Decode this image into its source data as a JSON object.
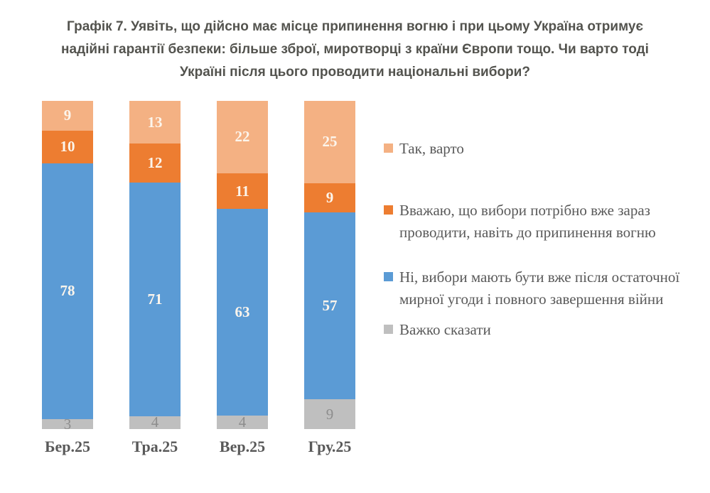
{
  "title": {
    "lines": [
      "Графік 7. Уявіть, що дійсно має місце припинення вогню і при цьому Україна отримує",
      "надійні гарантії безпеки: більше зброї, миротворці з країни Європи тощо. Чи варто тоді",
      "Україні після цього проводити національні вибори?"
    ]
  },
  "colors": {
    "title_text": "#53534e",
    "axis_text": "#595959",
    "legend_text": "#595959",
    "bar_label_light": "#fcf5ec",
    "bar_label_gray": "#8d8d8d"
  },
  "chart_data": {
    "type": "bar",
    "subtype": "stacked-100",
    "stack_order_top_to_bottom": true,
    "categories": [
      "Бер.25",
      "Тра.25",
      "Вер.25",
      "Гру.25"
    ],
    "series": [
      {
        "name": "Так, варто",
        "color": "#f4b183",
        "label_color": "#fcf5ec",
        "label_bold": true,
        "values": [
          9,
          13,
          22,
          25
        ]
      },
      {
        "name": "Вважаю, що вибори потрібно вже зараз проводити, навіть до припинення вогню",
        "color": "#ed7d31",
        "label_color": "#fcf5ec",
        "label_bold": true,
        "values": [
          10,
          12,
          11,
          9
        ]
      },
      {
        "name": "Ні, вибори мають бути вже після остаточної мирної угоди і повного завершення війни",
        "color": "#5b9bd5",
        "label_color": "#fcf5ec",
        "label_bold": true,
        "values": [
          78,
          71,
          63,
          57
        ]
      },
      {
        "name": "Важко сказати",
        "color": "#bfbfbf",
        "label_color": "#8d8d8d",
        "label_bold": false,
        "values": [
          3,
          4,
          4,
          9
        ]
      }
    ],
    "ylim": [
      0,
      100
    ],
    "grid": false,
    "legend_position": "right"
  }
}
